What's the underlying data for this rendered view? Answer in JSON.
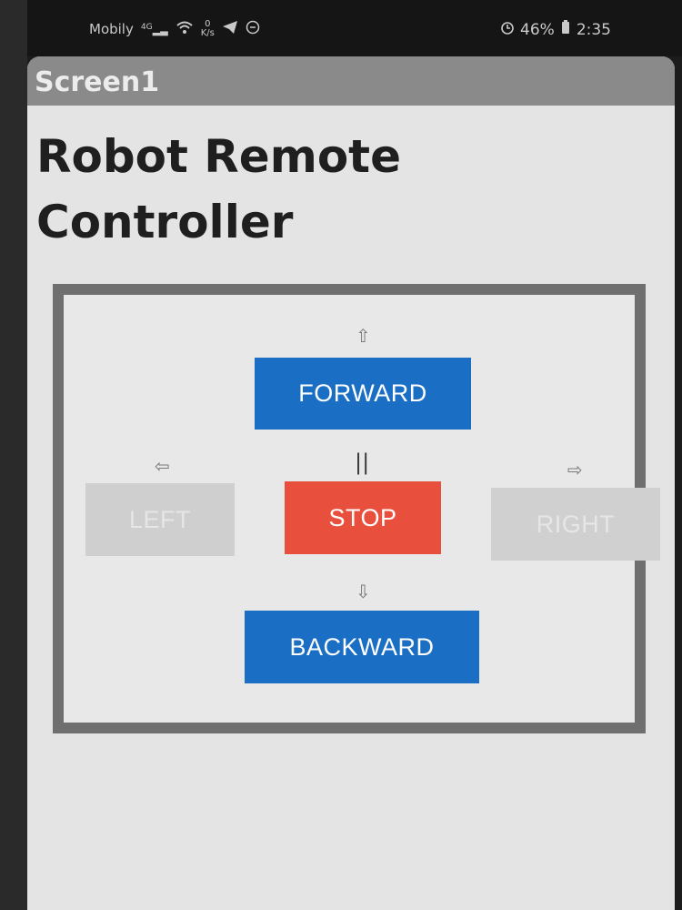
{
  "status_bar": {
    "carrier": "Mobily",
    "network": "4G",
    "net_speed_value": "0",
    "net_speed_unit": "K/s",
    "battery": "46%",
    "time": "2:35"
  },
  "screen": {
    "title": "Screen1",
    "heading": "Robot Remote Controller"
  },
  "controls": {
    "forward_label": "FORWARD",
    "stop_label": "STOP",
    "backward_label": "BACKWARD",
    "left_label": "LEFT",
    "right_label": "RIGHT",
    "up_arrow": "⇧",
    "down_arrow": "⇩",
    "left_arrow": "⇦",
    "right_arrow": "⇨",
    "pause_symbol": "||"
  },
  "colors": {
    "forward_backward": "#1a6fc4",
    "stop": "#e8503d",
    "disabled": "#cfcfcf",
    "frame": "#6f6f6f",
    "title_bar": "#8a8a8a"
  }
}
